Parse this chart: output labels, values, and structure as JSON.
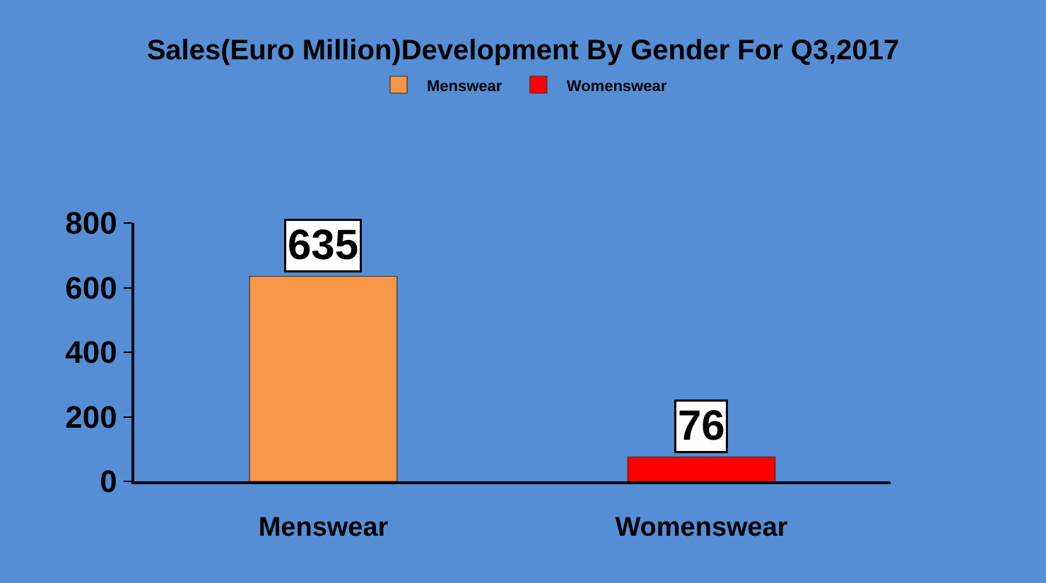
{
  "chart_data": {
    "type": "bar",
    "title": "Sales(Euro Million)Development By Gender For Q3,2017",
    "categories": [
      "Menswear",
      "Womenswear"
    ],
    "series": [
      {
        "name": "Menswear",
        "color": "#f79646",
        "values": [
          635,
          null
        ]
      },
      {
        "name": "Womenswear",
        "color": "#ff0000",
        "values": [
          null,
          76
        ]
      }
    ],
    "ylim": [
      0,
      800
    ],
    "yticks": [
      0,
      200,
      400,
      600,
      800
    ],
    "grid": false,
    "legend": "top",
    "data_labels": true
  }
}
